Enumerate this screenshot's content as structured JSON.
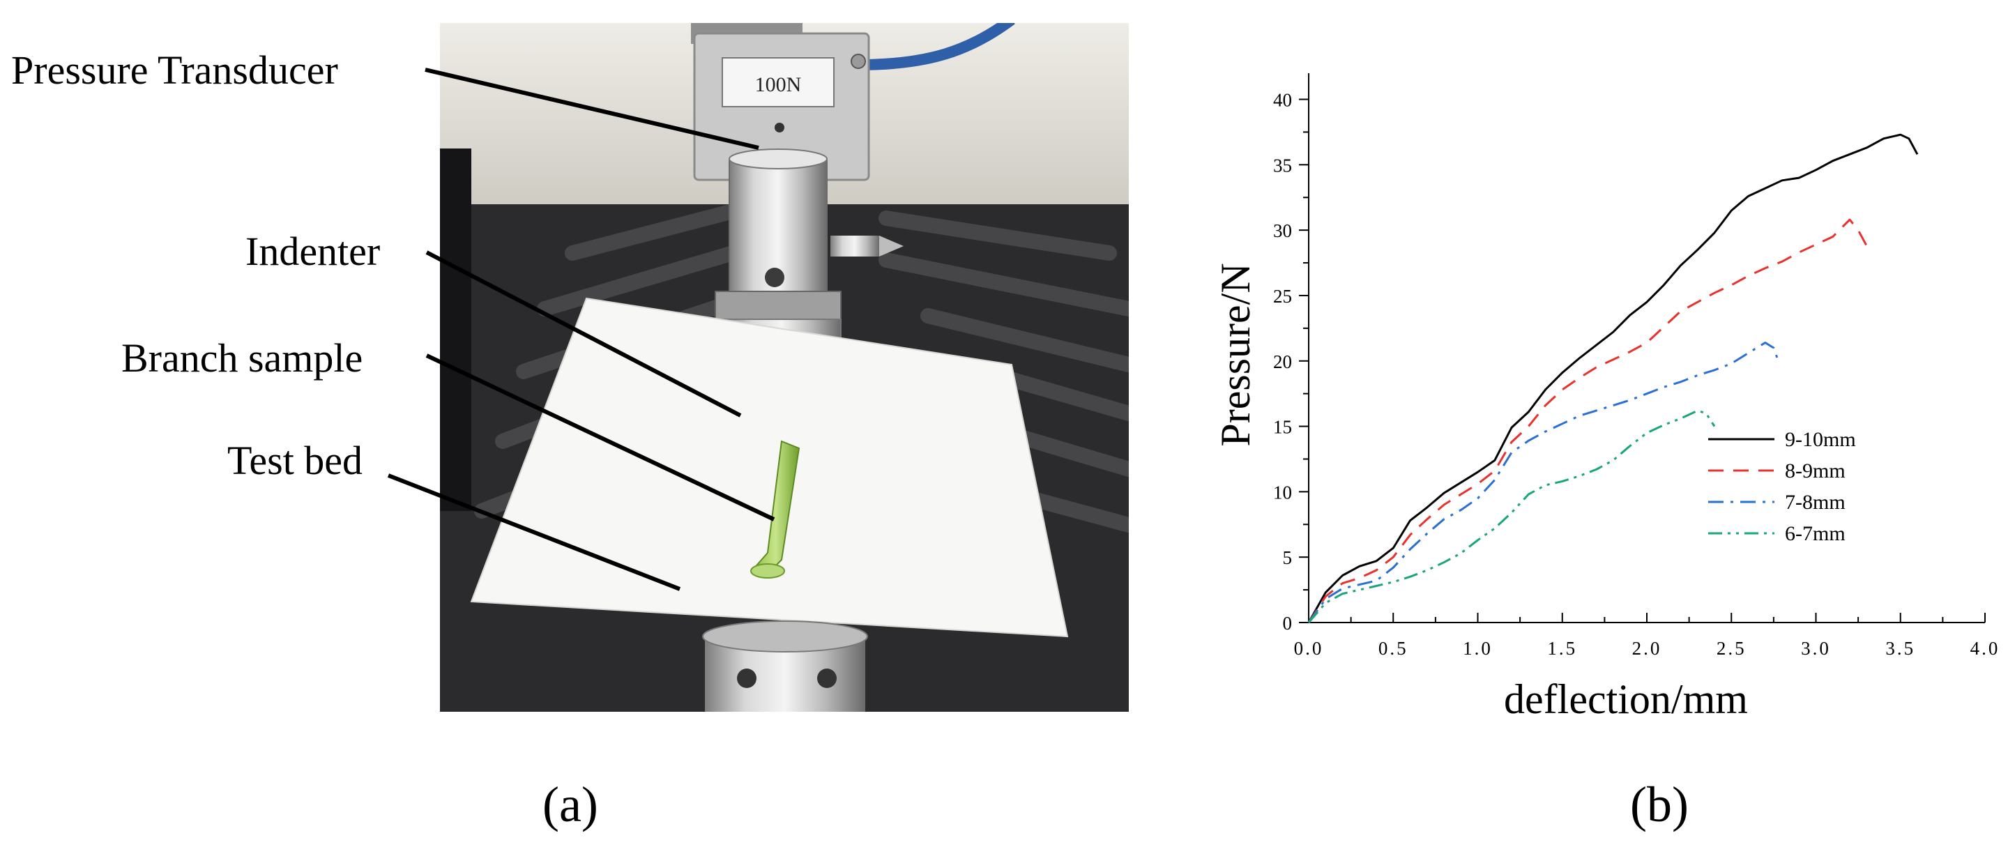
{
  "panel_a": {
    "labels": {
      "pressure_transducer": "Pressure Transducer",
      "indenter": "Indenter",
      "branch_sample": "Branch sample",
      "test_bed": "Test bed"
    },
    "sensor_plate": "100N",
    "caption": "(a)"
  },
  "panel_b": {
    "caption": "(b)"
  },
  "chart_data": {
    "type": "line",
    "title": "",
    "xlabel": "deflection/mm",
    "ylabel": "Pressure/N",
    "xlim": [
      0.0,
      4.0
    ],
    "ylim": [
      0,
      42
    ],
    "xticks": [
      "0.0",
      "0.5",
      "1.0",
      "1.5",
      "2.0",
      "2.5",
      "3.0",
      "3.5",
      "4.0"
    ],
    "yticks": [
      "0",
      "5",
      "10",
      "15",
      "20",
      "25",
      "30",
      "35",
      "40"
    ],
    "legend_position": "right",
    "grid": false,
    "series": [
      {
        "name": "9-10mm",
        "color": "#000000",
        "style": "solid",
        "x": [
          0,
          0.1,
          0.2,
          0.3,
          0.4,
          0.5,
          0.6,
          0.7,
          0.8,
          0.9,
          1.0,
          1.1,
          1.2,
          1.3,
          1.4,
          1.5,
          1.6,
          1.7,
          1.8,
          1.9,
          2.0,
          2.1,
          2.2,
          2.3,
          2.4,
          2.5,
          2.6,
          2.7,
          2.8,
          2.9,
          3.0,
          3.1,
          3.2,
          3.3,
          3.4,
          3.5,
          3.55,
          3.6
        ],
        "y": [
          0,
          2.3,
          3.6,
          4.3,
          4.7,
          5.7,
          7.8,
          8.8,
          9.9,
          10.7,
          11.5,
          12.4,
          14.9,
          16.1,
          17.8,
          19.1,
          20.2,
          21.2,
          22.2,
          23.5,
          24.5,
          25.8,
          27.3,
          28.5,
          29.8,
          31.5,
          32.6,
          33.2,
          33.8,
          34.0,
          34.6,
          35.3,
          35.8,
          36.3,
          37.0,
          37.3,
          37.0,
          35.8
        ]
      },
      {
        "name": "8-9mm",
        "color": "#e8322d",
        "style": "dashed",
        "x": [
          0,
          0.1,
          0.2,
          0.3,
          0.4,
          0.5,
          0.6,
          0.7,
          0.8,
          0.9,
          1.0,
          1.1,
          1.2,
          1.3,
          1.4,
          1.5,
          1.6,
          1.7,
          1.8,
          1.9,
          2.0,
          2.1,
          2.2,
          2.3,
          2.4,
          2.5,
          2.6,
          2.7,
          2.8,
          2.9,
          3.0,
          3.1,
          3.2,
          3.25,
          3.3
        ],
        "y": [
          0,
          2.0,
          3.0,
          3.4,
          4.0,
          5.0,
          6.7,
          7.9,
          9.0,
          9.8,
          10.6,
          11.6,
          13.8,
          15.0,
          16.6,
          17.8,
          18.7,
          19.5,
          20.1,
          20.7,
          21.4,
          22.6,
          23.8,
          24.5,
          25.2,
          25.8,
          26.5,
          27.1,
          27.6,
          28.3,
          28.9,
          29.5,
          30.8,
          30.0,
          28.8
        ]
      },
      {
        "name": "7-8mm",
        "color": "#2a6fd6",
        "style": "dashdot",
        "x": [
          0,
          0.1,
          0.2,
          0.3,
          0.4,
          0.5,
          0.6,
          0.7,
          0.8,
          0.9,
          1.0,
          1.1,
          1.2,
          1.3,
          1.4,
          1.5,
          1.6,
          1.7,
          1.8,
          1.9,
          2.0,
          2.1,
          2.2,
          2.3,
          2.4,
          2.5,
          2.6,
          2.7,
          2.75,
          2.78
        ],
        "y": [
          0,
          1.8,
          2.6,
          2.9,
          3.2,
          4.2,
          5.6,
          6.8,
          7.9,
          8.6,
          9.5,
          10.9,
          13.0,
          13.9,
          14.6,
          15.2,
          15.8,
          16.2,
          16.6,
          17.0,
          17.5,
          18.0,
          18.4,
          18.9,
          19.3,
          19.8,
          20.6,
          21.4,
          21.0,
          19.9
        ]
      },
      {
        "name": "6-7mm",
        "color": "#1aa67a",
        "style": "dashdotdot",
        "x": [
          0,
          0.1,
          0.2,
          0.3,
          0.4,
          0.5,
          0.6,
          0.7,
          0.8,
          0.9,
          1.0,
          1.1,
          1.2,
          1.3,
          1.4,
          1.5,
          1.6,
          1.7,
          1.8,
          1.9,
          2.0,
          2.1,
          2.2,
          2.3,
          2.35,
          2.4
        ],
        "y": [
          0,
          1.5,
          2.2,
          2.5,
          2.8,
          3.1,
          3.5,
          4.0,
          4.6,
          5.3,
          6.3,
          7.2,
          8.4,
          9.8,
          10.5,
          10.8,
          11.2,
          11.7,
          12.4,
          13.5,
          14.5,
          15.1,
          15.6,
          16.2,
          16.0,
          15.0
        ]
      }
    ]
  }
}
